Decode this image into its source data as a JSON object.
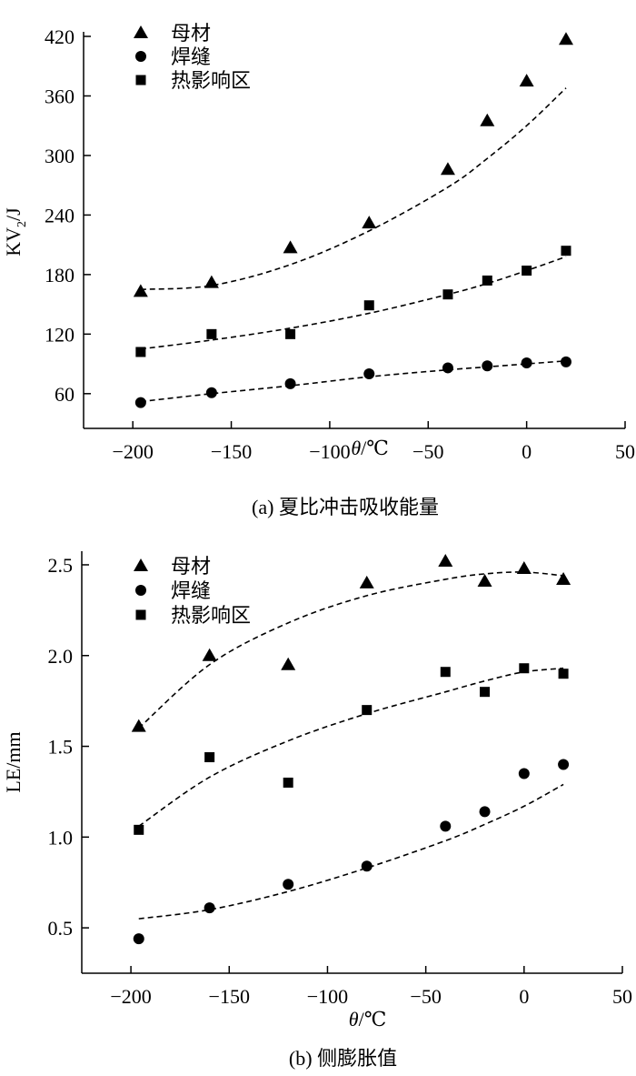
{
  "chart_data": [
    {
      "type": "scatter",
      "caption": "(a) 夏比冲击吸收能量",
      "ylabel_main": "KV",
      "ylabel_sub": "2",
      "ylabel_unit": "/J",
      "xlabel_var": "θ",
      "xlabel_unit": "/℃",
      "xlim": [
        -225,
        50
      ],
      "ylim": [
        25,
        420
      ],
      "xticks": [
        -200,
        -150,
        -100,
        -50,
        0,
        50
      ],
      "xtick_labels": [
        "−200",
        "−150",
        "−100",
        "−50",
        "0",
        "50"
      ],
      "yticks": [
        60,
        120,
        180,
        240,
        300,
        360,
        420
      ],
      "ytick_labels": [
        "60",
        "120",
        "180",
        "240",
        "300",
        "360",
        "420"
      ],
      "legend": "top-left",
      "grid": false,
      "series": [
        {
          "name": "母材",
          "marker": "triangle",
          "x": [
            -196,
            -160,
            -120,
            -80,
            -40,
            -20,
            0,
            20
          ],
          "y": [
            163,
            172,
            207,
            232,
            286,
            335,
            375,
            417
          ],
          "fit_x": [
            -196,
            -160,
            -120,
            -80,
            -40,
            -20,
            0,
            20
          ],
          "fit_y": [
            165,
            169,
            190,
            224,
            268,
            297,
            330,
            368
          ]
        },
        {
          "name": "焊缝",
          "marker": "circle",
          "x": [
            -196,
            -160,
            -120,
            -80,
            -40,
            -20,
            0,
            20
          ],
          "y": [
            51,
            61,
            70,
            80,
            86,
            88,
            91,
            92
          ],
          "fit_x": [
            -196,
            -160,
            -120,
            -80,
            -40,
            -20,
            0,
            20
          ],
          "fit_y": [
            52,
            60,
            68,
            77,
            84,
            87,
            90,
            93
          ]
        },
        {
          "name": "热影响区",
          "marker": "square",
          "x": [
            -196,
            -160,
            -120,
            -80,
            -40,
            -20,
            0,
            20
          ],
          "y": [
            102,
            120,
            120,
            149,
            160,
            174,
            184,
            204
          ],
          "fit_x": [
            -196,
            -160,
            -120,
            -80,
            -40,
            -20,
            0,
            20
          ],
          "fit_y": [
            105,
            114,
            126,
            141,
            160,
            171,
            184,
            198
          ]
        }
      ]
    },
    {
      "type": "scatter",
      "caption": "(b) 侧膨胀值",
      "ylabel_main": "LE/mm",
      "xlabel_var": "θ",
      "xlabel_unit": "/℃",
      "xlim": [
        -225,
        50
      ],
      "ylim": [
        0.25,
        2.55
      ],
      "xticks": [
        -200,
        -150,
        -100,
        -50,
        0,
        50
      ],
      "xtick_labels": [
        "−200",
        "−150",
        "−100",
        "−50",
        "0",
        "50"
      ],
      "yticks": [
        0.5,
        1.0,
        1.5,
        2.0,
        2.5
      ],
      "ytick_labels": [
        "0.5",
        "1.0",
        "1.5",
        "2.0",
        "2.5"
      ],
      "legend": "top-left",
      "grid": false,
      "series": [
        {
          "name": "母材",
          "marker": "triangle",
          "x": [
            -196,
            -160,
            -120,
            -80,
            -40,
            -20,
            0,
            20
          ],
          "y": [
            1.61,
            2.0,
            1.95,
            2.4,
            2.52,
            2.41,
            2.48,
            2.42
          ],
          "fit_x": [
            -196,
            -160,
            -120,
            -80,
            -40,
            -20,
            0,
            20
          ],
          "fit_y": [
            1.6,
            1.95,
            2.18,
            2.33,
            2.42,
            2.45,
            2.46,
            2.44
          ]
        },
        {
          "name": "焊缝",
          "marker": "circle",
          "x": [
            -196,
            -160,
            -120,
            -80,
            -40,
            -20,
            0,
            20
          ],
          "y": [
            0.44,
            0.61,
            0.74,
            0.84,
            1.06,
            1.14,
            1.35,
            1.4
          ],
          "fit_x": [
            -196,
            -160,
            -120,
            -80,
            -40,
            -20,
            0,
            20
          ],
          "fit_y": [
            0.55,
            0.6,
            0.7,
            0.83,
            0.98,
            1.07,
            1.17,
            1.29
          ]
        },
        {
          "name": "热影响区",
          "marker": "square",
          "x": [
            -196,
            -160,
            -120,
            -80,
            -40,
            -20,
            0,
            20
          ],
          "y": [
            1.04,
            1.44,
            1.3,
            1.7,
            1.91,
            1.8,
            1.93,
            1.9
          ],
          "fit_x": [
            -196,
            -160,
            -120,
            -80,
            -40,
            -20,
            0,
            20
          ],
          "fit_y": [
            1.06,
            1.33,
            1.53,
            1.68,
            1.8,
            1.86,
            1.91,
            1.93
          ]
        }
      ]
    }
  ]
}
